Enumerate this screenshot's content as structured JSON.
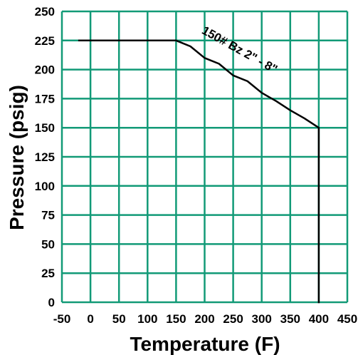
{
  "chart_data": {
    "type": "line",
    "title": "",
    "xlabel": "Temperature (F)",
    "ylabel": "Pressure (psig)",
    "xlim": [
      -50,
      450
    ],
    "ylim": [
      0,
      250
    ],
    "x_ticks": [
      "-50",
      "0",
      "50",
      "100",
      "150",
      "200",
      "250",
      "300",
      "350",
      "400",
      "450"
    ],
    "y_ticks": [
      "0",
      "25",
      "50",
      "75",
      "100",
      "125",
      "150",
      "175",
      "200",
      "225",
      "250"
    ],
    "grid": true,
    "grid_color": "#129a77",
    "line_color": "#000000",
    "series": [
      {
        "name": "150# Bz  2\" - 8\"",
        "x": [
          -20,
          150,
          175,
          200,
          225,
          250,
          275,
          300,
          325,
          350,
          375,
          400,
          400
        ],
        "y": [
          225,
          225,
          220,
          210,
          205,
          195,
          190,
          180,
          173,
          165,
          158,
          150,
          0
        ]
      }
    ]
  }
}
